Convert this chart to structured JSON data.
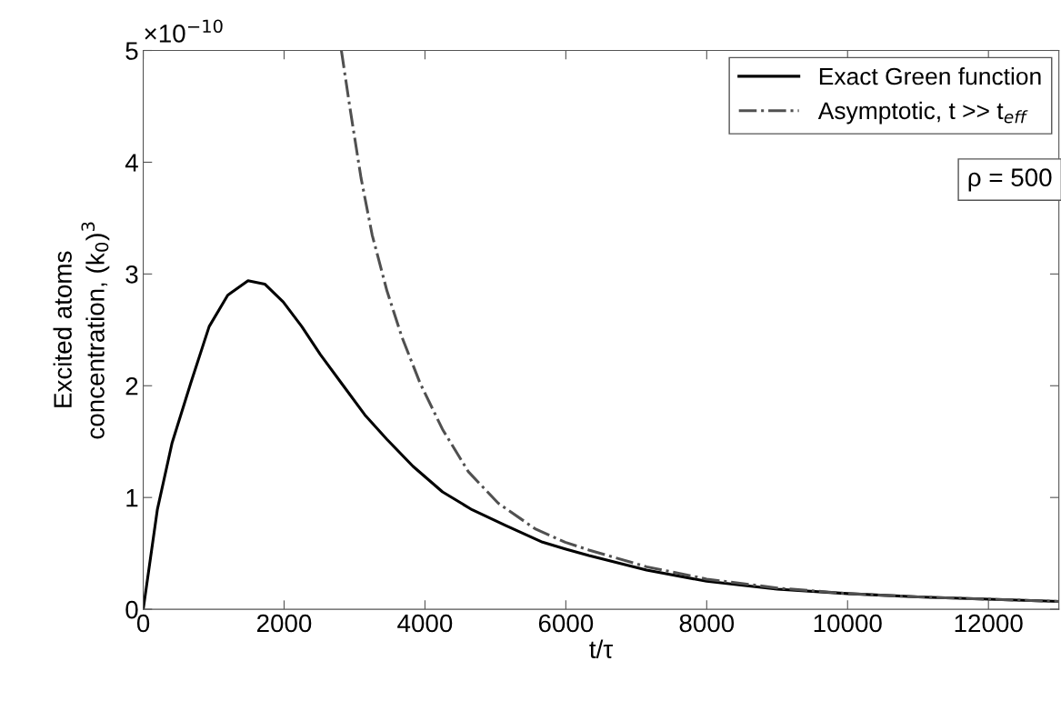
{
  "chart_data": {
    "type": "line",
    "xlabel": "t/τ",
    "ylabel": "Excited atoms\nconcentration, (k$_{0}$)$^{3}$",
    "annotations": [
      "×10$^{−10}$",
      "ρ = 500"
    ],
    "xlim": [
      0,
      13000
    ],
    "xticks": [
      0,
      2000,
      4000,
      6000,
      8000,
      10000,
      12000
    ],
    "ylim": [
      0,
      5
    ],
    "yticks": [
      0,
      1,
      2,
      3,
      4,
      5
    ],
    "grid": false,
    "legend": "top right",
    "marker": "none",
    "series": [
      {
        "name": "Exact Green function",
        "color": "#000000",
        "line_style": "solid",
        "x": [
          0,
          200,
          410,
          673,
          936,
          1199,
          1488,
          1725,
          1988,
          2251,
          2514,
          2829,
          3145,
          3460,
          3828,
          4249,
          4670,
          5143,
          5669,
          5990,
          6327,
          7146,
          8000,
          9000,
          10000,
          11000,
          12000,
          13000
        ],
        "values": [
          0,
          0.89,
          1.49,
          2.02,
          2.53,
          2.81,
          2.94,
          2.91,
          2.75,
          2.53,
          2.28,
          2.01,
          1.74,
          1.52,
          1.28,
          1.05,
          0.89,
          0.75,
          0.6,
          0.54,
          0.48,
          0.35,
          0.25,
          0.18,
          0.14,
          0.11,
          0.09,
          0.07
        ]
      },
      {
        "name": "Asymptotic, t >> t$_{eff}$",
        "color": "#505050",
        "line_style": "dashdot",
        "x": [
          2813,
          2934,
          3092,
          3250,
          3460,
          3670,
          3933,
          4249,
          4617,
          5038,
          5564,
          5990,
          6327,
          7146,
          8000,
          9000,
          10000,
          11000,
          12000,
          13000
        ],
        "values": [
          5,
          4.49,
          3.86,
          3.35,
          2.85,
          2.44,
          2.02,
          1.61,
          1.23,
          0.95,
          0.72,
          0.6,
          0.53,
          0.38,
          0.27,
          0.19,
          0.14,
          0.11,
          0.09,
          0.07
        ]
      }
    ]
  }
}
